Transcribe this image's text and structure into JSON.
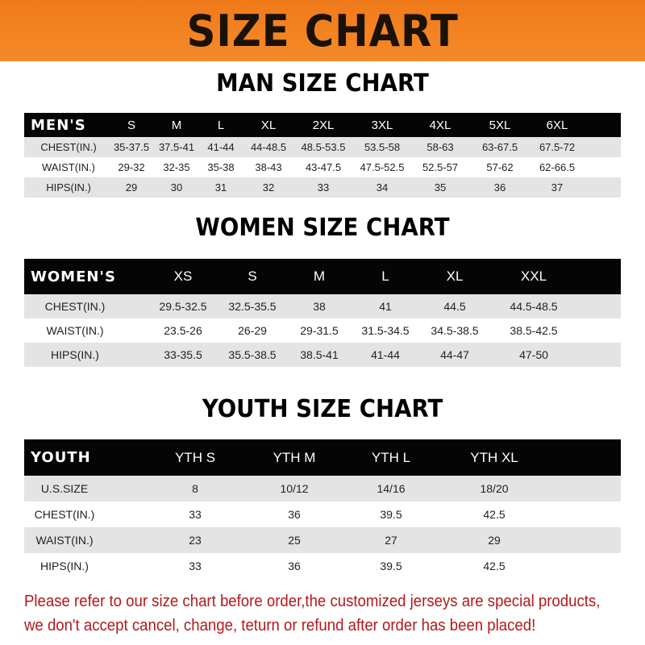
{
  "banner": {
    "title": "SIZE CHART",
    "color": "#f07a1a"
  },
  "men": {
    "title": "MAN SIZE CHART",
    "header": [
      "MEN'S",
      "S",
      "M",
      "L",
      "XL",
      "2XL",
      "3XL",
      "4XL",
      "5XL",
      "6XL"
    ],
    "rows": [
      [
        "CHEST(IN.)",
        "35-37.5",
        "37.5-41",
        "41-44",
        "44-48.5",
        "48.5-53.5",
        "53.5-58",
        "58-63",
        "63-67.5",
        "67.5-72"
      ],
      [
        "WAIST(IN.)",
        "29-32",
        "32-35",
        "35-38",
        "38-43",
        "43-47.5",
        "47.5-52.5",
        "52.5-57",
        "57-62",
        "62-66.5"
      ],
      [
        "HIPS(IN.)",
        "29",
        "30",
        "31",
        "32",
        "33",
        "34",
        "35",
        "36",
        "37"
      ]
    ]
  },
  "women": {
    "title": "WOMEN SIZE CHART",
    "header": [
      "WOMEN'S",
      "XS",
      "S",
      "M",
      "L",
      "XL",
      "XXL"
    ],
    "rows": [
      [
        "CHEST(IN.)",
        "29.5-32.5",
        "32.5-35.5",
        "38",
        "41",
        "44.5",
        "44.5-48.5"
      ],
      [
        "WAIST(IN.)",
        "23.5-26",
        "26-29",
        "29-31.5",
        "31.5-34.5",
        "34.5-38.5",
        "38.5-42.5"
      ],
      [
        "HIPS(IN.)",
        "33-35.5",
        "35.5-38.5",
        "38.5-41",
        "41-44",
        "44-47",
        "47-50"
      ]
    ]
  },
  "youth": {
    "title": "YOUTH SIZE CHART",
    "header": [
      "YOUTH",
      "YTH S",
      "YTH M",
      "YTH L",
      "YTH XL"
    ],
    "rows": [
      [
        "U.S.SIZE",
        "8",
        "10/12",
        "14/16",
        "18/20"
      ],
      [
        "CHEST(IN.)",
        "33",
        "36",
        "39.5",
        "42.5"
      ],
      [
        "WAIST(IN.)",
        "23",
        "25",
        "27",
        "29"
      ],
      [
        "HIPS(IN.)",
        "33",
        "36",
        "39.5",
        "42.5"
      ]
    ]
  },
  "notice": {
    "line1": "Please refer to our size chart before order,the customized jerseys are special products,",
    "line2": "we don't accept cancel, change, teturn or refund after order has been placed!",
    "color": "#b3181a"
  }
}
